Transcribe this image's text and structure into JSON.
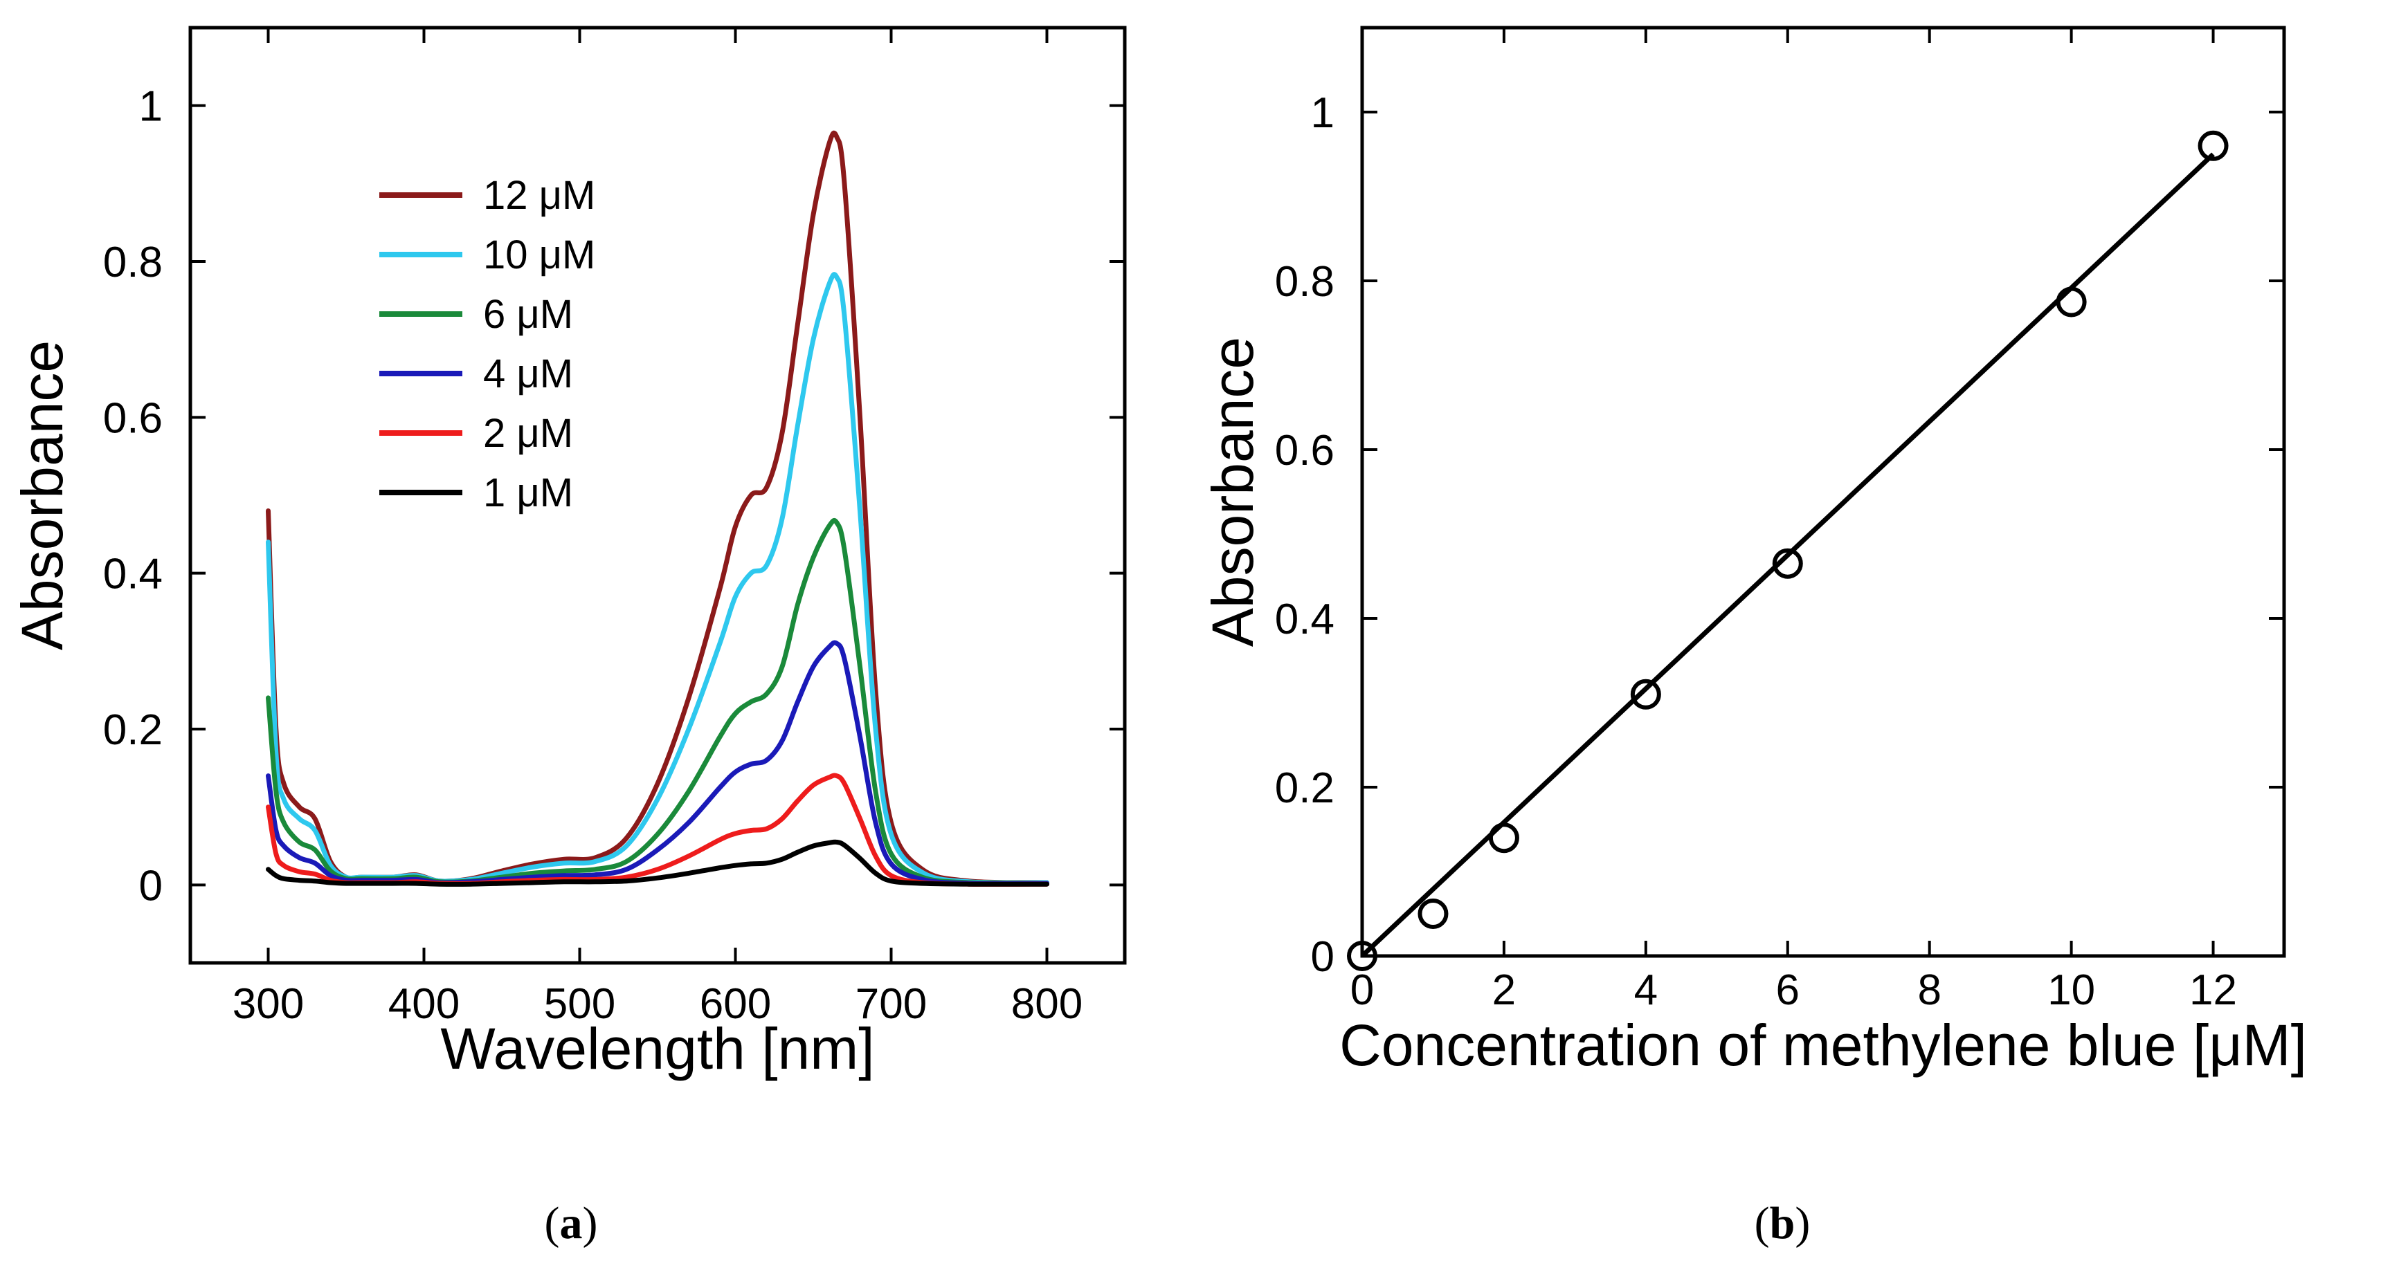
{
  "chart_data": [
    {
      "type": "line",
      "panel_label": {
        "open": "(",
        "letter": "a",
        "close": ")"
      },
      "xlabel": "Wavelength [nm]",
      "ylabel": "Absorbance",
      "xlim": [
        250,
        850
      ],
      "ylim": [
        -0.1,
        1.1
      ],
      "xticks": [
        300,
        400,
        500,
        600,
        700,
        800
      ],
      "xtick_labels": [
        "300",
        "400",
        "500",
        "600",
        "700",
        "800"
      ],
      "yticks": [
        0,
        0.2,
        0.4,
        0.6,
        0.8,
        1
      ],
      "ytick_labels": [
        "0",
        "0.2",
        "0.4",
        "0.6",
        "0.8",
        "1"
      ],
      "legend_position": "top-left",
      "x": [
        300,
        305,
        310,
        320,
        330,
        340,
        350,
        360,
        380,
        395,
        410,
        430,
        450,
        470,
        490,
        510,
        530,
        550,
        570,
        590,
        600,
        610,
        620,
        630,
        640,
        650,
        660,
        665,
        670,
        680,
        690,
        700,
        720,
        750,
        800
      ],
      "series": [
        {
          "name": "12 μM",
          "color": "#8b1a1a",
          "values": [
            0.48,
            0.2,
            0.13,
            0.1,
            0.085,
            0.03,
            0.01,
            0.01,
            0.01,
            0.013,
            0.005,
            0.008,
            0.018,
            0.027,
            0.033,
            0.035,
            0.06,
            0.13,
            0.24,
            0.38,
            0.46,
            0.5,
            0.51,
            0.58,
            0.72,
            0.86,
            0.95,
            0.96,
            0.9,
            0.6,
            0.25,
            0.08,
            0.02,
            0.005,
            0.003
          ]
        },
        {
          "name": "10 μM",
          "color": "#2ec8ee",
          "values": [
            0.44,
            0.17,
            0.11,
            0.085,
            0.07,
            0.025,
            0.01,
            0.01,
            0.01,
            0.012,
            0.005,
            0.007,
            0.015,
            0.023,
            0.028,
            0.03,
            0.05,
            0.11,
            0.2,
            0.31,
            0.37,
            0.4,
            0.41,
            0.47,
            0.59,
            0.7,
            0.77,
            0.78,
            0.73,
            0.48,
            0.2,
            0.065,
            0.016,
            0.004,
            0.003
          ]
        },
        {
          "name": "6 μM",
          "color": "#1a8a3a",
          "values": [
            0.24,
            0.12,
            0.08,
            0.055,
            0.045,
            0.018,
            0.008,
            0.008,
            0.008,
            0.01,
            0.004,
            0.005,
            0.01,
            0.015,
            0.018,
            0.02,
            0.03,
            0.065,
            0.12,
            0.19,
            0.22,
            0.235,
            0.245,
            0.28,
            0.36,
            0.42,
            0.46,
            0.465,
            0.43,
            0.28,
            0.12,
            0.04,
            0.01,
            0.003,
            0.002
          ]
        },
        {
          "name": "4 μM",
          "color": "#1a1ab8",
          "values": [
            0.14,
            0.07,
            0.05,
            0.035,
            0.028,
            0.012,
            0.006,
            0.006,
            0.006,
            0.007,
            0.003,
            0.004,
            0.007,
            0.01,
            0.012,
            0.013,
            0.02,
            0.045,
            0.08,
            0.125,
            0.145,
            0.155,
            0.16,
            0.185,
            0.235,
            0.28,
            0.305,
            0.31,
            0.29,
            0.19,
            0.08,
            0.027,
            0.007,
            0.002,
            0.002
          ]
        },
        {
          "name": "2 μM",
          "color": "#ee1c1c",
          "values": [
            0.1,
            0.04,
            0.025,
            0.017,
            0.014,
            0.006,
            0.003,
            0.003,
            0.003,
            0.004,
            0.002,
            0.002,
            0.004,
            0.006,
            0.007,
            0.007,
            0.01,
            0.02,
            0.037,
            0.058,
            0.066,
            0.07,
            0.072,
            0.085,
            0.108,
            0.128,
            0.138,
            0.14,
            0.13,
            0.085,
            0.037,
            0.012,
            0.003,
            0.001,
            0.001
          ]
        },
        {
          "name": "1 μM",
          "color": "#000000",
          "values": [
            0.02,
            0.012,
            0.008,
            0.006,
            0.005,
            0.003,
            0.002,
            0.002,
            0.002,
            0.002,
            0.001,
            0.001,
            0.002,
            0.003,
            0.004,
            0.004,
            0.005,
            0.009,
            0.015,
            0.022,
            0.025,
            0.027,
            0.028,
            0.033,
            0.042,
            0.05,
            0.054,
            0.055,
            0.051,
            0.034,
            0.015,
            0.005,
            0.002,
            0.001,
            0.001
          ]
        }
      ]
    },
    {
      "type": "scatter",
      "panel_label": {
        "open": "(",
        "letter": "b",
        "close": ")"
      },
      "xlabel": "Concentration of methylene blue [μM]",
      "ylabel": "Absorbance",
      "xlim": [
        0,
        13
      ],
      "ylim": [
        0,
        1.1
      ],
      "xticks": [
        0,
        2,
        4,
        6,
        8,
        10,
        12
      ],
      "xtick_labels": [
        "0",
        "2",
        "4",
        "6",
        "8",
        "10",
        "12"
      ],
      "yticks": [
        0,
        0.2,
        0.4,
        0.6,
        0.8,
        1
      ],
      "ytick_labels": [
        "0",
        "0.2",
        "0.4",
        "0.6",
        "0.8",
        "1"
      ],
      "x": [
        0,
        1,
        2,
        4,
        6,
        10,
        12
      ],
      "y": [
        0,
        0.05,
        0.14,
        0.31,
        0.465,
        0.775,
        0.96
      ],
      "fit_line": {
        "x": [
          0,
          12
        ],
        "y": [
          0,
          0.95
        ]
      }
    }
  ]
}
